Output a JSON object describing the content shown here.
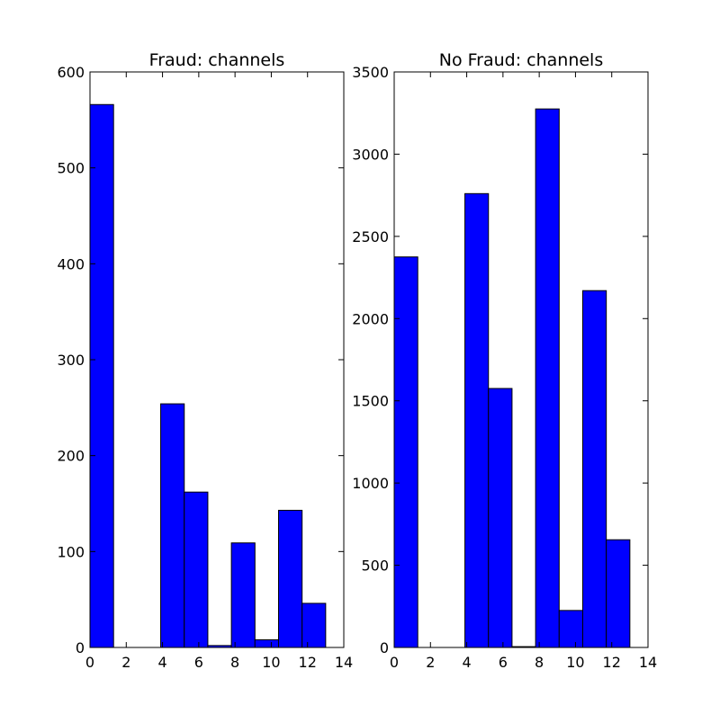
{
  "chart_data": [
    {
      "type": "bar",
      "title": "Fraud: channels",
      "xlabel": "",
      "ylabel": "",
      "xlim": [
        0,
        14
      ],
      "ylim": [
        0,
        600
      ],
      "xticks": [
        "0",
        "2",
        "4",
        "6",
        "8",
        "10",
        "12",
        "14"
      ],
      "yticks": [
        "0",
        "100",
        "200",
        "300",
        "400",
        "500",
        "600"
      ],
      "bin_edges": [
        0,
        1.3,
        2.6,
        3.9,
        5.2,
        6.5,
        7.8,
        9.1,
        10.4,
        11.7,
        13.0
      ],
      "series": [
        {
          "values": [
            566,
            0,
            0,
            254,
            162,
            2,
            109,
            8,
            143,
            46
          ],
          "color": "#0000ff"
        }
      ],
      "grid": false
    },
    {
      "type": "bar",
      "title": "No Fraud: channels",
      "xlabel": "",
      "ylabel": "",
      "xlim": [
        0,
        14
      ],
      "ylim": [
        0,
        3500
      ],
      "xticks": [
        "0",
        "2",
        "4",
        "6",
        "8",
        "10",
        "12",
        "14"
      ],
      "yticks": [
        "0",
        "500",
        "1000",
        "1500",
        "2000",
        "2500",
        "3000",
        "3500"
      ],
      "bin_edges": [
        0,
        1.3,
        2.6,
        3.9,
        5.2,
        6.5,
        7.8,
        9.1,
        10.4,
        11.7,
        13.0
      ],
      "series": [
        {
          "values": [
            2375,
            0,
            0,
            2760,
            1575,
            5,
            3275,
            225,
            2170,
            655
          ],
          "color": "#0000ff"
        }
      ],
      "grid": false
    }
  ]
}
